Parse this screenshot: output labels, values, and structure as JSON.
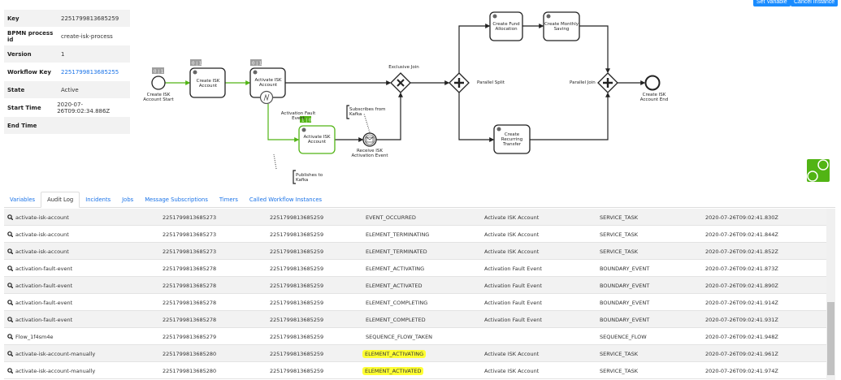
{
  "header": {
    "set_variable": "Set Variable",
    "cancel_instance": "Cancel Instance"
  },
  "info": [
    {
      "key": "Key",
      "value": "2251799813685259"
    },
    {
      "key": "BPMN process id",
      "value": "create-isk-process"
    },
    {
      "key": "Version",
      "value": "1"
    },
    {
      "key": "Workflow Key",
      "value": "2251799813685255",
      "link": true
    },
    {
      "key": "State",
      "value": "Active"
    },
    {
      "key": "Start Time",
      "value": "2020-07-26T09:02:34.886Z"
    },
    {
      "key": "End Time",
      "value": ""
    }
  ],
  "diagram": {
    "start": [
      "Create ISK",
      "Account Start"
    ],
    "start_badge": "0 | 1",
    "create_account": [
      "Create ISK",
      "Account"
    ],
    "create_account_badge": "0 | 1",
    "activate_account": [
      "Activate ISK",
      "Account"
    ],
    "activate_account_badge": "0 | 1",
    "fault_event": [
      "Activation Fault",
      "Event"
    ],
    "manual_activate": [
      "Activate ISK",
      "Account"
    ],
    "manual_activate_badge": "1 | 0",
    "receive_event": [
      "Receive ISK",
      "Activation Event"
    ],
    "subscribes": [
      "Subscribes from",
      "Kafka"
    ],
    "publishes": [
      "Publishes to",
      "Kafka"
    ],
    "exclusive_join": "Exclusive Join",
    "parallel_split": "Parallel Split",
    "parallel_join": "Parallel Join",
    "fund_allocation": [
      "Create Fund",
      "Allocation"
    ],
    "monthly_saving": [
      "Create Monthly",
      "Saving"
    ],
    "recurring_transfer": [
      "Create",
      "Recurring",
      "Transfer"
    ],
    "end": [
      "Create ISK",
      "Account End"
    ],
    "active_color": "#52b415"
  },
  "tabs": [
    "Variables",
    "Audit Log",
    "Incidents",
    "Jobs",
    "Message Subscriptions",
    "Timers",
    "Called Workflow Instances"
  ],
  "active_tab": "Audit Log",
  "audit_log": [
    [
      "activate-isk-account",
      "2251799813685273",
      "2251799813685259",
      "EVENT_OCCURRED",
      "Activate ISK Account",
      "SERVICE_TASK",
      "2020-07-26T09:02:41.830Z"
    ],
    [
      "activate-isk-account",
      "2251799813685273",
      "2251799813685259",
      "ELEMENT_TERMINATING",
      "Activate ISK Account",
      "SERVICE_TASK",
      "2020-07-26T09:02:41.844Z"
    ],
    [
      "activate-isk-account",
      "2251799813685273",
      "2251799813685259",
      "ELEMENT_TERMINATED",
      "Activate ISK Account",
      "SERVICE_TASK",
      "2020-07-26T09:02:41.852Z"
    ],
    [
      "activation-fault-event",
      "2251799813685278",
      "2251799813685259",
      "ELEMENT_ACTIVATING",
      "Activation Fault Event",
      "BOUNDARY_EVENT",
      "2020-07-26T09:02:41.873Z"
    ],
    [
      "activation-fault-event",
      "2251799813685278",
      "2251799813685259",
      "ELEMENT_ACTIVATED",
      "Activation Fault Event",
      "BOUNDARY_EVENT",
      "2020-07-26T09:02:41.890Z"
    ],
    [
      "activation-fault-event",
      "2251799813685278",
      "2251799813685259",
      "ELEMENT_COMPLETING",
      "Activation Fault Event",
      "BOUNDARY_EVENT",
      "2020-07-26T09:02:41.914Z"
    ],
    [
      "activation-fault-event",
      "2251799813685278",
      "2251799813685259",
      "ELEMENT_COMPLETED",
      "Activation Fault Event",
      "BOUNDARY_EVENT",
      "2020-07-26T09:02:41.931Z"
    ],
    [
      "Flow_1f4sm4e",
      "2251799813685279",
      "2251799813685259",
      "SEQUENCE_FLOW_TAKEN",
      "",
      "SEQUENCE_FLOW",
      "2020-07-26T09:02:41.948Z"
    ],
    [
      "activate-isk-account-manually",
      "2251799813685280",
      "2251799813685259",
      "ELEMENT_ACTIVATING",
      "Activate ISK Account",
      "SERVICE_TASK",
      "2020-07-26T09:02:41.961Z"
    ],
    [
      "activate-isk-account-manually",
      "2251799813685280",
      "2251799813685259",
      "ELEMENT_ACTIVATED",
      "Activate ISK Account",
      "SERVICE_TASK",
      "2020-07-26T09:02:41.974Z"
    ]
  ],
  "highlighted_rows": [
    8,
    9
  ],
  "highlight_color": "#ffff33"
}
